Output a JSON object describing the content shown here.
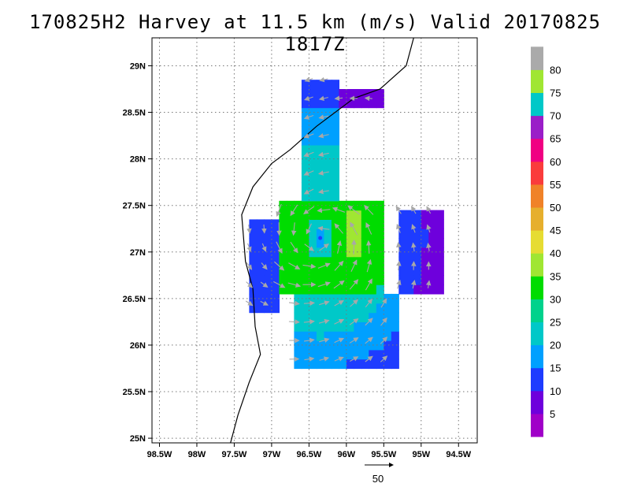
{
  "title": "170825H2 Harvey at 11.5 km (m/s) Valid 20170825 1817Z",
  "chart_data": {
    "type": "heatmap",
    "title": "170825H2 Harvey at 11.5 km (m/s) Valid 20170825 1817Z",
    "xlabel": "",
    "ylabel": "",
    "grid": true,
    "x_ticks": [
      {
        "value": -98.5,
        "label": "98.5W"
      },
      {
        "value": -98.0,
        "label": "98W"
      },
      {
        "value": -97.5,
        "label": "97.5W"
      },
      {
        "value": -97.0,
        "label": "97W"
      },
      {
        "value": -96.5,
        "label": "96.5W"
      },
      {
        "value": -96.0,
        "label": "96W"
      },
      {
        "value": -95.5,
        "label": "95.5W"
      },
      {
        "value": -95.0,
        "label": "95W"
      },
      {
        "value": -94.5,
        "label": "94.5W"
      }
    ],
    "y_ticks": [
      {
        "value": 25.0,
        "label": "25N"
      },
      {
        "value": 25.5,
        "label": "25.5N"
      },
      {
        "value": 26.0,
        "label": "26N"
      },
      {
        "value": 26.5,
        "label": "26.5N"
      },
      {
        "value": 27.0,
        "label": "27N"
      },
      {
        "value": 27.5,
        "label": "27.5N"
      },
      {
        "value": 28.0,
        "label": "28N"
      },
      {
        "value": 28.5,
        "label": "28.5N"
      },
      {
        "value": 29.0,
        "label": "29N"
      }
    ],
    "xlim": [
      -98.6,
      -94.25
    ],
    "ylim": [
      24.95,
      29.3
    ],
    "colorbar": [
      {
        "label": "5",
        "color": "#a000c8"
      },
      {
        "label": "10",
        "color": "#6e00dc"
      },
      {
        "label": "15",
        "color": "#1e3cff"
      },
      {
        "label": "20",
        "color": "#00a0ff"
      },
      {
        "label": "25",
        "color": "#00c8c8"
      },
      {
        "label": "30",
        "color": "#00d28c"
      },
      {
        "label": "35",
        "color": "#00dc00"
      },
      {
        "label": "40",
        "color": "#a0e632"
      },
      {
        "label": "45",
        "color": "#e6dc32"
      },
      {
        "label": "50",
        "color": "#e6af2d"
      },
      {
        "label": "55",
        "color": "#f08228"
      },
      {
        "label": "60",
        "color": "#fa3c3c"
      },
      {
        "label": "65",
        "color": "#f00082"
      },
      {
        "label": "70",
        "color": "#9a1ec8"
      },
      {
        "label": "75",
        "color": "#00c8c8"
      },
      {
        "label": "80",
        "color": "#a0e632"
      },
      {
        "label": "",
        "color": "#aaaaaa"
      }
    ],
    "vector_scale_label": "50",
    "storm_center": {
      "lon": -96.35,
      "lat": 27.15
    },
    "coastline": [
      [
        -95.1,
        29.3
      ],
      [
        -95.2,
        29.0
      ],
      [
        -95.55,
        28.75
      ],
      [
        -95.9,
        28.65
      ],
      [
        -96.4,
        28.35
      ],
      [
        -96.75,
        28.1
      ],
      [
        -97.0,
        27.95
      ],
      [
        -97.25,
        27.7
      ],
      [
        -97.4,
        27.4
      ],
      [
        -97.35,
        26.9
      ],
      [
        -97.25,
        26.6
      ],
      [
        -97.22,
        26.2
      ],
      [
        -97.15,
        25.9
      ],
      [
        -97.3,
        25.6
      ],
      [
        -97.45,
        25.25
      ],
      [
        -97.55,
        24.95
      ]
    ],
    "wind_field": {
      "lon0": -96.35,
      "lat0": 27.15,
      "rmw_deg": 0.35,
      "components": [
        {
          "name": "north-band",
          "lon": [
            -96.65,
            -96.1
          ],
          "lat": [
            27.6,
            28.85
          ],
          "speed": 20
        },
        {
          "name": "northeast-band",
          "lon": [
            -96.1,
            -95.5
          ],
          "lat": [
            28.55,
            28.75
          ],
          "speed": 15
        },
        {
          "name": "core",
          "lon": [
            -96.95,
            -95.55
          ],
          "lat": [
            26.55,
            27.55
          ],
          "speed": 30
        },
        {
          "name": "eyewall-max",
          "lon": [
            -96.05,
            -95.8
          ],
          "lat": [
            26.95,
            27.45
          ],
          "speed": 38
        },
        {
          "name": "south-band",
          "lon": [
            -96.7,
            -95.3
          ],
          "lat": [
            25.75,
            26.55
          ],
          "speed": 20
        },
        {
          "name": "east-band",
          "lon": [
            -95.3,
            -94.7
          ],
          "lat": [
            26.6,
            27.45
          ],
          "speed": 15
        },
        {
          "name": "west-band",
          "lon": [
            -97.3,
            -96.9
          ],
          "lat": [
            26.4,
            27.35
          ],
          "speed": 12
        }
      ]
    }
  }
}
